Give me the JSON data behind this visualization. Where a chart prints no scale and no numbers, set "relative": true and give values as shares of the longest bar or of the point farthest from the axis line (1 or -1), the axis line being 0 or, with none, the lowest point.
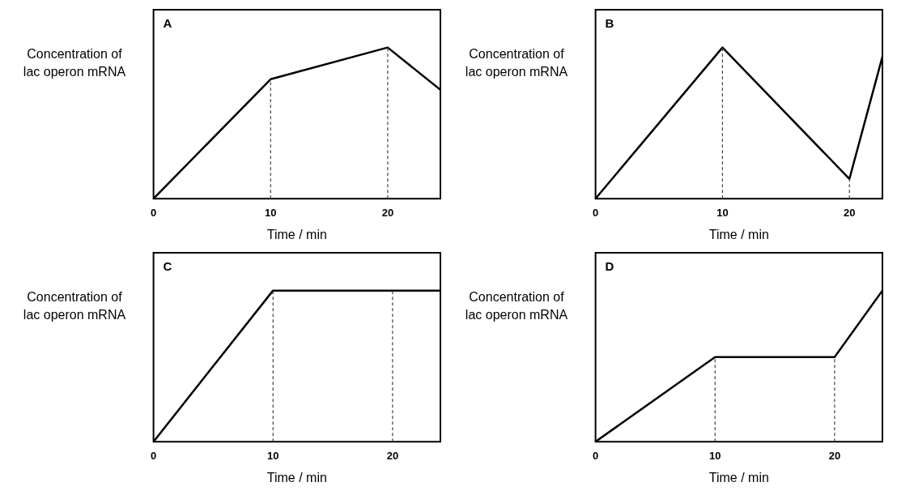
{
  "chart_data": [
    {
      "type": "line",
      "annotations": [
        "A"
      ],
      "ylabel": "Concentration of lac operon mRNA",
      "xlabel": "Time / min",
      "relative": true,
      "marker": "none",
      "color": "#000000",
      "x": [
        0,
        10,
        20,
        24.5
      ],
      "values": [
        0,
        0.79,
        1,
        0.72
      ],
      "xlim": [
        0,
        24.5
      ],
      "xticks": [
        0,
        10,
        20
      ],
      "ref_lines": [
        {
          "axis": "x",
          "value": 10,
          "line_style": "dashed"
        },
        {
          "axis": "x",
          "value": 20,
          "line_style": "dashed"
        }
      ]
    },
    {
      "type": "line",
      "annotations": [
        "B"
      ],
      "ylabel": "Concentration of lac operon mRNA",
      "xlabel": "Time / min",
      "relative": true,
      "marker": "none",
      "color": "#000000",
      "x": [
        0,
        10,
        20,
        22.6
      ],
      "values": [
        0,
        1,
        0.13,
        0.94
      ],
      "xlim": [
        0,
        22.6
      ],
      "xticks": [
        0,
        10,
        20
      ],
      "ref_lines": [
        {
          "axis": "x",
          "value": 10,
          "line_style": "dashed"
        },
        {
          "axis": "x",
          "value": 20,
          "line_style": "dashed"
        }
      ]
    },
    {
      "type": "line",
      "annotations": [
        "C"
      ],
      "ylabel": "Concentration of lac operon mRNA",
      "xlabel": "Time / min",
      "relative": true,
      "marker": "none",
      "color": "#000000",
      "x": [
        0,
        10,
        20,
        24
      ],
      "values": [
        0,
        1,
        1,
        1
      ],
      "xlim": [
        0,
        24
      ],
      "xticks": [
        0,
        10,
        20
      ],
      "ref_lines": [
        {
          "axis": "x",
          "value": 10,
          "line_style": "dashed"
        },
        {
          "axis": "x",
          "value": 20,
          "line_style": "dashed"
        }
      ]
    },
    {
      "type": "line",
      "annotations": [
        "D"
      ],
      "ylabel": "Concentration of lac operon mRNA",
      "xlabel": "Time / min",
      "relative": true,
      "marker": "none",
      "color": "#000000",
      "x": [
        0,
        10,
        20,
        24
      ],
      "values": [
        0,
        0.56,
        0.56,
        1
      ],
      "xlim": [
        0,
        24
      ],
      "xticks": [
        0,
        10,
        20
      ],
      "ref_lines": [
        {
          "axis": "x",
          "value": 10,
          "line_style": "dashed"
        },
        {
          "axis": "x",
          "value": 20,
          "line_style": "dashed"
        }
      ]
    }
  ]
}
